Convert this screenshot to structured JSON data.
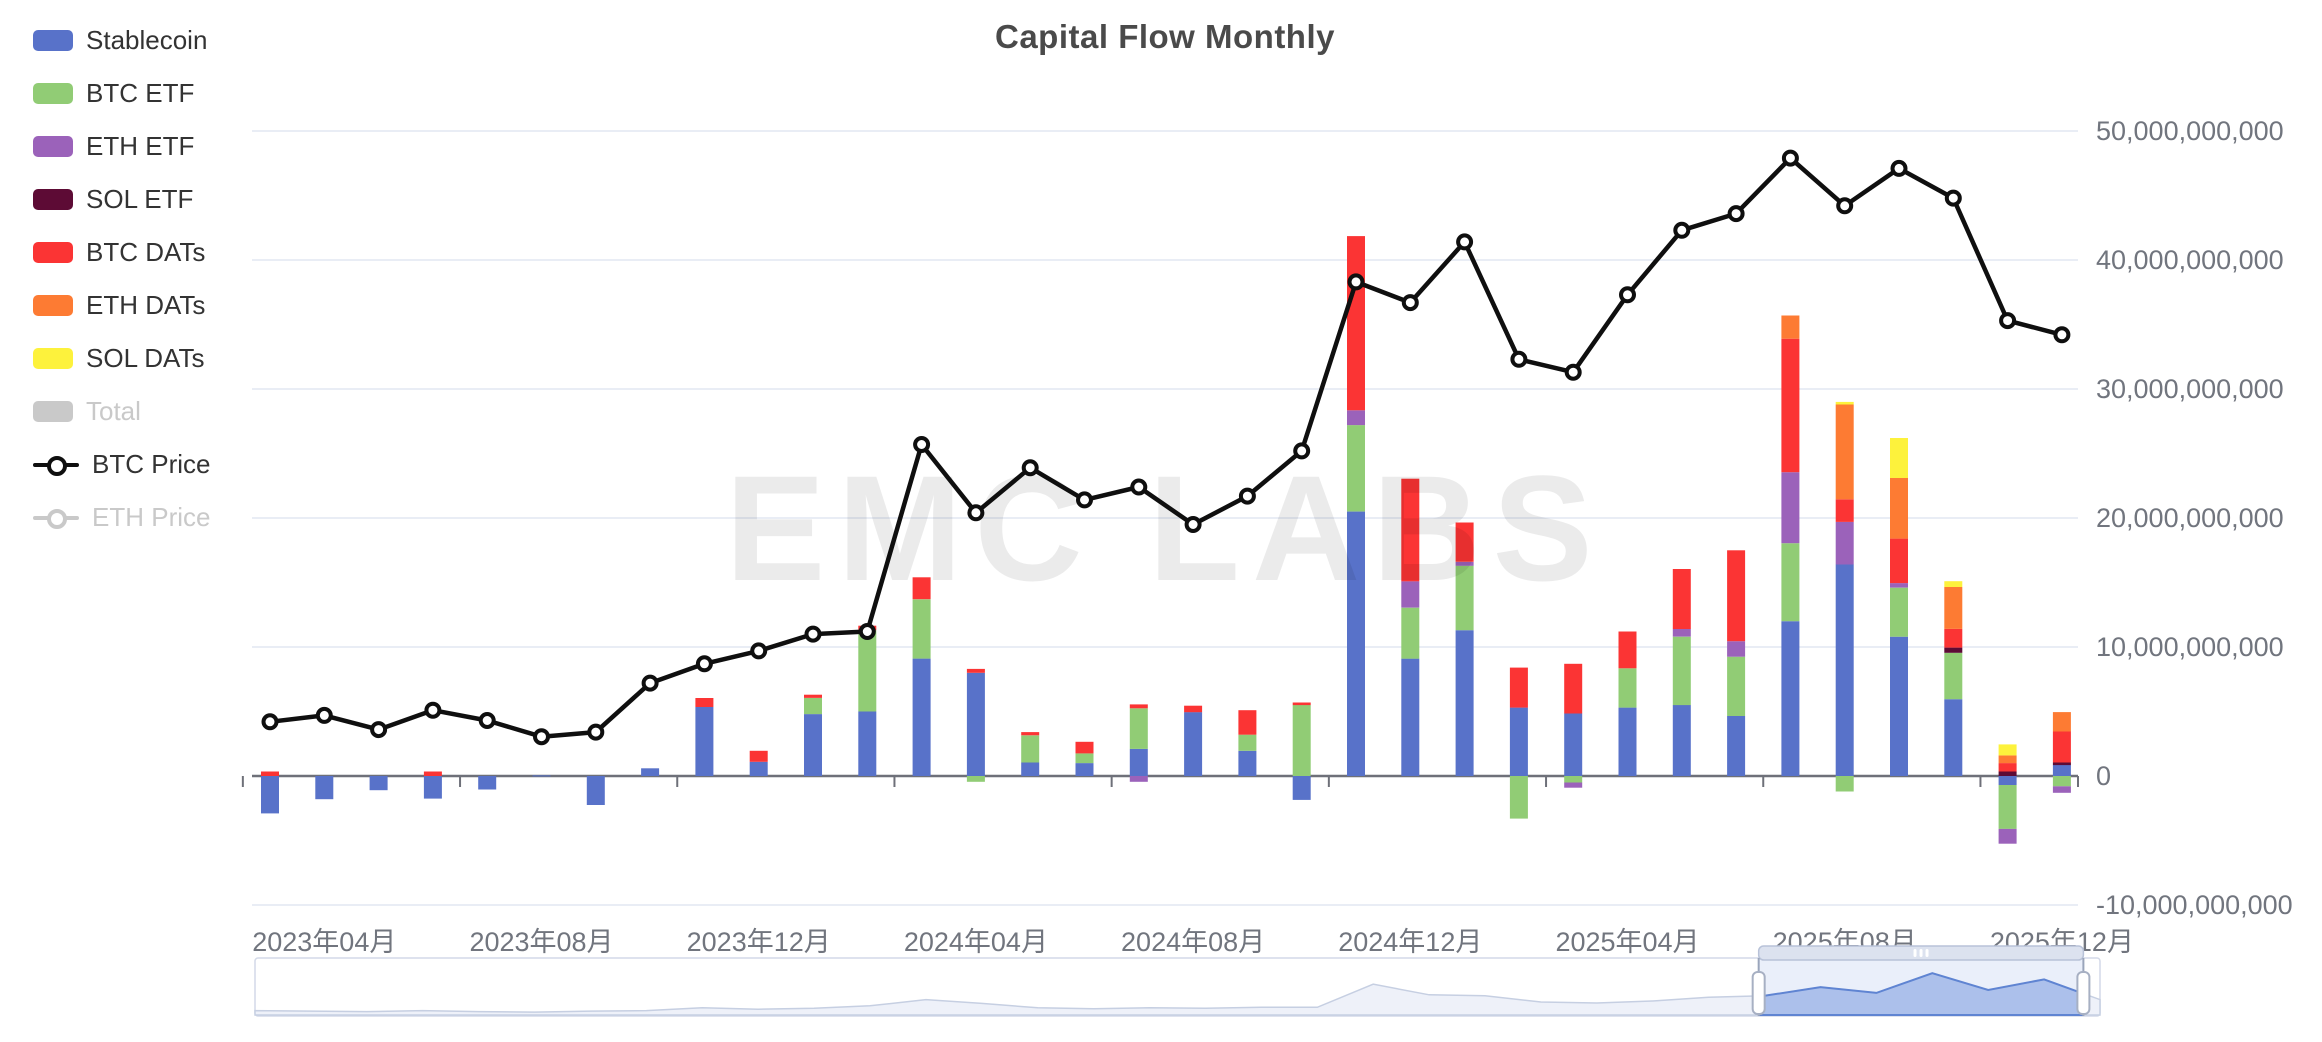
{
  "title": "Capital Flow Monthly",
  "watermark": "EMC LABS",
  "legend": {
    "items": [
      {
        "id": "stablecoin",
        "label": "Stablecoin",
        "color": "#5872c9",
        "type": "box",
        "disabled": false
      },
      {
        "id": "btc-etf",
        "label": "BTC ETF",
        "color": "#91cc75",
        "type": "box",
        "disabled": false
      },
      {
        "id": "eth-etf",
        "label": "ETH ETF",
        "color": "#9b62ba",
        "type": "box",
        "disabled": false
      },
      {
        "id": "sol-etf",
        "label": "SOL ETF",
        "color": "#5d0b35",
        "type": "box",
        "disabled": false
      },
      {
        "id": "btc-dats",
        "label": "BTC DATs",
        "color": "#fb3434",
        "type": "box",
        "disabled": false
      },
      {
        "id": "eth-dats",
        "label": "ETH DATs",
        "color": "#fd7b33",
        "type": "box",
        "disabled": false
      },
      {
        "id": "sol-dats",
        "label": "SOL DATs",
        "color": "#fdf23c",
        "type": "box",
        "disabled": false
      },
      {
        "id": "total",
        "label": "Total",
        "color": "#c9c9c9",
        "type": "box",
        "disabled": true
      },
      {
        "id": "btc-price",
        "label": "BTC Price",
        "color": "#0f0f0f",
        "type": "line",
        "disabled": false
      },
      {
        "id": "eth-price",
        "label": "ETH Price",
        "color": "#c9c9c9",
        "type": "line",
        "disabled": true
      }
    ]
  },
  "axis": {
    "y_ticks": [
      {
        "v": 50,
        "label": "50,000,000,000"
      },
      {
        "v": 40,
        "label": "40,000,000,000"
      },
      {
        "v": 30,
        "label": "30,000,000,000"
      },
      {
        "v": 20,
        "label": "20,000,000,000"
      },
      {
        "v": 10,
        "label": "10,000,000,000"
      },
      {
        "v": 0,
        "label": "0"
      },
      {
        "v": -10,
        "label": "-10,000,000,000"
      }
    ],
    "x_tick_labels": [
      "2023年04月",
      "2023年08月",
      "2023年12月",
      "2024年04月",
      "2024年08月",
      "2024年12月",
      "2025年04月",
      "2025年08月",
      "2025年12月"
    ],
    "x_tick_label_month_indices": [
      1,
      5,
      9,
      13,
      17,
      21,
      25,
      29,
      33
    ]
  },
  "chart_data": {
    "type": "combo",
    "note": "stacked monthly capital-flow bars with BTC price line overlay; bar values in billions USD read from right axis",
    "values_in": "billions_usd",
    "ylim": [
      -10000000000,
      50000000000
    ],
    "months": [
      "2023-03",
      "2023-04",
      "2023-05",
      "2023-06",
      "2023-07",
      "2023-08",
      "2023-09",
      "2023-10",
      "2023-11",
      "2023-12",
      "2024-01",
      "2024-02",
      "2024-03",
      "2024-04",
      "2024-05",
      "2024-06",
      "2024-07",
      "2024-08",
      "2024-09",
      "2024-10",
      "2024-11",
      "2024-12",
      "2025-01",
      "2025-02",
      "2025-03",
      "2025-04",
      "2025-05",
      "2025-06",
      "2025-07",
      "2025-08",
      "2025-09",
      "2025-10",
      "2025-11",
      "2025-12"
    ],
    "series": [
      {
        "name": "Stablecoin",
        "type": "bar",
        "color": "#5872c9",
        "values": [
          -2.9,
          -1.8,
          -1.1,
          -1.75,
          -1.05,
          0.05,
          -2.25,
          0.6,
          5.35,
          1.1,
          4.8,
          5.0,
          9.1,
          8.0,
          1.05,
          1.0,
          2.1,
          4.95,
          1.95,
          -1.85,
          20.5,
          9.1,
          11.3,
          5.3,
          4.85,
          5.3,
          5.5,
          4.65,
          12.0,
          16.4,
          10.8,
          5.95,
          -0.7,
          0.85
        ]
      },
      {
        "name": "BTC ETF",
        "type": "bar",
        "color": "#91cc75",
        "values": [
          0,
          0,
          0,
          0,
          0,
          0,
          0,
          0,
          0,
          0,
          1.25,
          6.3,
          4.6,
          -0.45,
          2.1,
          0.75,
          3.15,
          0,
          1.25,
          5.5,
          6.7,
          3.95,
          5.0,
          -3.3,
          -0.5,
          3.05,
          5.3,
          4.6,
          6.05,
          -1.2,
          3.8,
          3.6,
          -3.4,
          -0.8
        ]
      },
      {
        "name": "ETH ETF",
        "type": "bar",
        "color": "#9b62ba",
        "values": [
          0,
          0,
          0,
          0,
          0,
          0,
          0,
          0,
          0,
          0,
          0,
          0,
          0,
          0,
          0,
          0,
          -0.45,
          0,
          0,
          0,
          1.15,
          2.05,
          0.3,
          0,
          -0.4,
          0,
          0.6,
          1.2,
          5.5,
          3.3,
          0.35,
          0,
          -1.15,
          -0.5
        ]
      },
      {
        "name": "SOL ETF",
        "type": "bar",
        "color": "#5d0b35",
        "values": [
          0,
          0,
          0,
          0,
          0,
          0,
          0,
          0,
          0,
          0,
          0,
          0,
          0,
          0,
          0,
          0,
          0,
          0,
          0,
          0,
          0,
          0,
          0,
          0,
          0,
          0,
          0,
          0,
          0,
          0,
          0,
          0.4,
          0.35,
          0.2
        ]
      },
      {
        "name": "BTC DATs",
        "type": "bar",
        "color": "#fb3434",
        "values": [
          0.35,
          0,
          0,
          0.35,
          0,
          0,
          0,
          0,
          0.7,
          0.85,
          0.25,
          0.35,
          1.7,
          0.3,
          0.25,
          0.9,
          0.3,
          0.5,
          1.9,
          0.2,
          13.5,
          7.95,
          3.05,
          3.1,
          3.85,
          2.85,
          4.65,
          7.05,
          10.35,
          1.75,
          3.45,
          1.45,
          0.65,
          2.4
        ]
      },
      {
        "name": "ETH DATs",
        "type": "bar",
        "color": "#fd7b33",
        "values": [
          0,
          0,
          0,
          0,
          0,
          0,
          0,
          0,
          0,
          0,
          0,
          0,
          0,
          0,
          0,
          0,
          0,
          0,
          0,
          0,
          0,
          0,
          0,
          0,
          0,
          0,
          0,
          0,
          1.8,
          7.35,
          4.7,
          3.25,
          0.6,
          1.5
        ]
      },
      {
        "name": "SOL DATs",
        "type": "bar",
        "color": "#fdf23c",
        "values": [
          0,
          0,
          0,
          0,
          0,
          0,
          0,
          0,
          0,
          0,
          0,
          0,
          0,
          0,
          0,
          0,
          0,
          0,
          0,
          0,
          0,
          0,
          0,
          0,
          0,
          0,
          0,
          0,
          0,
          0.2,
          3.1,
          0.45,
          0.85,
          0
        ]
      },
      {
        "name": "BTC Price",
        "type": "line",
        "color": "#0f0f0f",
        "values": [
          4.2,
          4.7,
          3.6,
          5.1,
          4.3,
          3.05,
          3.4,
          7.2,
          8.7,
          9.7,
          11.0,
          11.2,
          25.7,
          20.4,
          23.9,
          21.4,
          22.4,
          19.5,
          21.7,
          25.2,
          38.3,
          36.7,
          41.4,
          32.3,
          31.3,
          37.3,
          42.3,
          43.6,
          47.9,
          44.2,
          47.1,
          44.8,
          35.3,
          34.2
        ]
      }
    ],
    "hidden_series": [
      "Total",
      "ETH Price"
    ],
    "legend_position": "left",
    "grid": true
  },
  "navigator": {
    "values": [
      0.07,
      0.06,
      0.05,
      0.07,
      0.05,
      0.04,
      0.06,
      0.07,
      0.13,
      0.1,
      0.12,
      0.17,
      0.3,
      0.22,
      0.13,
      0.11,
      0.13,
      0.12,
      0.14,
      0.14,
      0.62,
      0.4,
      0.38,
      0.25,
      0.23,
      0.27,
      0.35,
      0.38,
      0.56,
      0.44,
      0.85,
      0.5,
      0.72,
      0.3
    ],
    "sel_start": 0.815,
    "sel_end": 0.991
  }
}
